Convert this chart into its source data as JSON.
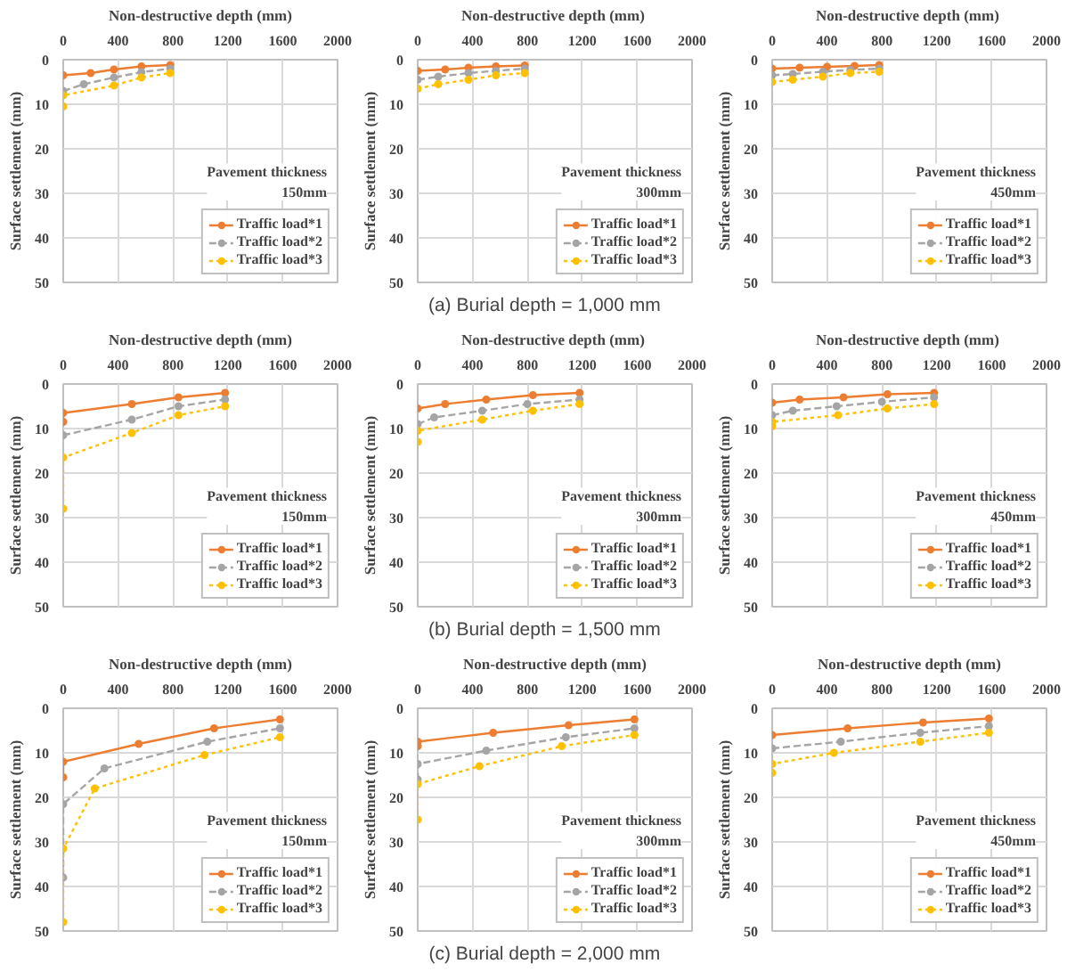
{
  "chart_data": [
    {
      "type": "line",
      "xlabel": "Non-destructive depth (mm)",
      "ylabel": "Surface settlement (mm)",
      "xlim": [
        0,
        2000
      ],
      "xticks": [
        0,
        400,
        800,
        1200,
        1600,
        2000
      ],
      "ylim": [
        50,
        0
      ],
      "yticks": [
        0,
        10,
        20,
        30,
        40,
        50
      ],
      "grid": true,
      "legend": "bottom right",
      "marker": "circle",
      "annotations": [
        "Pavement thickness\n150mm"
      ],
      "series": [
        {
          "name": "Traffic load*1",
          "color": "#ed7d31",
          "line_style": "solid",
          "x": [
            0,
            200,
            370,
            570,
            780
          ],
          "values": [
            3.5,
            3,
            2.2,
            1.5,
            1.2
          ]
        },
        {
          "name": "Traffic load*2",
          "color": "#a5a5a5",
          "line_style": "dashed",
          "x": [
            0,
            150,
            370,
            570,
            780
          ],
          "values": [
            7,
            5.5,
            4,
            2.8,
            2
          ]
        },
        {
          "name": "Traffic load*3",
          "color": "#ffc000",
          "line_style": "dotted",
          "x": [
            0,
            0,
            370,
            570,
            780
          ],
          "values": [
            10.5,
            8,
            5.8,
            4,
            3
          ]
        }
      ]
    },
    {
      "type": "line",
      "title": "(a)  Burial  depth  =  1,000 mm",
      "xlabel": "Non-destructive depth  (mm)",
      "ylabel": "Surface settlement (mm)",
      "xlim": [
        0,
        2000
      ],
      "xticks": [
        0,
        400,
        800,
        1200,
        1600,
        2000
      ],
      "ylim": [
        50,
        0
      ],
      "yticks": [
        0,
        10,
        20,
        30,
        40,
        50
      ],
      "grid": true,
      "legend": "bottom right",
      "marker": "circle",
      "annotations": [
        "Pavement thickness\n300mm"
      ],
      "series": [
        {
          "name": "Traffic load*1",
          "color": "#ed7d31",
          "line_style": "solid",
          "x": [
            0,
            200,
            370,
            570,
            780
          ],
          "values": [
            2.5,
            2.2,
            1.8,
            1.5,
            1.3
          ]
        },
        {
          "name": "Traffic load*2",
          "color": "#a5a5a5",
          "line_style": "dashed",
          "x": [
            0,
            150,
            370,
            570,
            780
          ],
          "values": [
            4.5,
            3.8,
            3,
            2.5,
            2
          ]
        },
        {
          "name": "Traffic load*3",
          "color": "#ffc000",
          "line_style": "dotted",
          "x": [
            0,
            150,
            370,
            570,
            780
          ],
          "values": [
            6.5,
            5.5,
            4.5,
            3.5,
            3
          ]
        }
      ]
    },
    {
      "type": "line",
      "xlabel": "Non-destructive depth  (mm)",
      "ylabel": "Surface settlement (mm)",
      "xlim": [
        0,
        2000
      ],
      "xticks": [
        0,
        400,
        800,
        1200,
        1600,
        2000
      ],
      "ylim": [
        50,
        0
      ],
      "yticks": [
        0,
        10,
        20,
        30,
        40,
        50
      ],
      "grid": true,
      "legend": "bottom right",
      "marker": "circle",
      "annotations": [
        "Pavement thickness\n450mm"
      ],
      "series": [
        {
          "name": "Traffic load*1",
          "color": "#ed7d31",
          "line_style": "solid",
          "x": [
            0,
            200,
            400,
            600,
            780
          ],
          "values": [
            2,
            1.8,
            1.6,
            1.4,
            1.2
          ]
        },
        {
          "name": "Traffic load*2",
          "color": "#a5a5a5",
          "line_style": "dashed",
          "x": [
            0,
            150,
            370,
            570,
            780
          ],
          "values": [
            3.5,
            3.2,
            2.7,
            2.3,
            2
          ]
        },
        {
          "name": "Traffic load*3",
          "color": "#ffc000",
          "line_style": "dotted",
          "x": [
            0,
            150,
            370,
            570,
            780
          ],
          "values": [
            5,
            4.5,
            3.8,
            3,
            2.7
          ]
        }
      ]
    },
    {
      "type": "line",
      "xlabel": "Non-destructive depth (mm)",
      "ylabel": "Surface settlement (mm)",
      "xlim": [
        0,
        2000
      ],
      "xticks": [
        0,
        400,
        800,
        1200,
        1600,
        2000
      ],
      "ylim": [
        50,
        0
      ],
      "yticks": [
        0,
        10,
        20,
        30,
        40,
        50
      ],
      "grid": true,
      "legend": "bottom right",
      "marker": "circle",
      "annotations": [
        "Pavement thickness\n150mm"
      ],
      "series": [
        {
          "name": "Traffic load*1",
          "color": "#ed7d31",
          "line_style": "solid",
          "x": [
            0,
            0,
            500,
            840,
            1180
          ],
          "values": [
            8.5,
            6.5,
            4.5,
            3,
            2
          ]
        },
        {
          "name": "Traffic load*2",
          "color": "#a5a5a5",
          "line_style": "dashed",
          "x": [
            0,
            500,
            840,
            1180
          ],
          "values": [
            11.5,
            8,
            5,
            3.5
          ]
        },
        {
          "name": "Traffic load*3",
          "color": "#ffc000",
          "line_style": "dotted",
          "x": [
            0,
            0,
            500,
            840,
            1180
          ],
          "values": [
            28,
            16.5,
            11,
            7,
            5
          ]
        }
      ]
    },
    {
      "type": "line",
      "title": "(b)  Burial  depth  =  1,500 mm",
      "xlabel": "Non-destructive depth  (mm)",
      "ylabel": "Surface settlement (mm)",
      "xlim": [
        0,
        2000
      ],
      "xticks": [
        0,
        400,
        800,
        1200,
        1600,
        2000
      ],
      "ylim": [
        50,
        0
      ],
      "yticks": [
        0,
        10,
        20,
        30,
        40,
        50
      ],
      "grid": true,
      "legend": "bottom right",
      "marker": "circle",
      "annotations": [
        "Pavement thickness\n300mm"
      ],
      "series": [
        {
          "name": "Traffic load*1",
          "color": "#ed7d31",
          "line_style": "solid",
          "x": [
            0,
            200,
            500,
            840,
            1180
          ],
          "values": [
            5.5,
            4.5,
            3.5,
            2.5,
            2
          ]
        },
        {
          "name": "Traffic load*2",
          "color": "#a5a5a5",
          "line_style": "dashed",
          "x": [
            0,
            120,
            470,
            800,
            1180
          ],
          "values": [
            9,
            7.5,
            6,
            4.5,
            3.5
          ]
        },
        {
          "name": "Traffic load*3",
          "color": "#ffc000",
          "line_style": "dotted",
          "x": [
            0,
            0,
            470,
            840,
            1180
          ],
          "values": [
            13,
            10.5,
            8,
            6,
            4.5
          ]
        }
      ]
    },
    {
      "type": "line",
      "xlabel": "Non-destructive depth  (mm)",
      "ylabel": "Surface settlement (mm)",
      "xlim": [
        0,
        2000
      ],
      "xticks": [
        0,
        400,
        800,
        1200,
        1600,
        2000
      ],
      "ylim": [
        50,
        0
      ],
      "yticks": [
        0,
        10,
        20,
        30,
        40,
        50
      ],
      "grid": true,
      "legend": "bottom right",
      "marker": "circle",
      "annotations": [
        "Pavement thickness\n450mm"
      ],
      "series": [
        {
          "name": "Traffic load*1",
          "color": "#ed7d31",
          "line_style": "solid",
          "x": [
            0,
            200,
            520,
            840,
            1180
          ],
          "values": [
            4.2,
            3.5,
            3,
            2.3,
            2
          ]
        },
        {
          "name": "Traffic load*2",
          "color": "#a5a5a5",
          "line_style": "dashed",
          "x": [
            0,
            150,
            470,
            800,
            1180
          ],
          "values": [
            7,
            6,
            5,
            4,
            3
          ]
        },
        {
          "name": "Traffic load*3",
          "color": "#ffc000",
          "line_style": "dotted",
          "x": [
            0,
            0,
            480,
            840,
            1180
          ],
          "values": [
            9.5,
            8.5,
            7,
            5.5,
            4.5
          ]
        }
      ]
    },
    {
      "type": "line",
      "xlabel": "Non-destructive depth (mm)",
      "ylabel": "Surface settlement (mm)",
      "xlim": [
        0,
        2000
      ],
      "xticks": [
        0,
        400,
        800,
        1200,
        1600,
        2000
      ],
      "ylim": [
        50,
        0
      ],
      "yticks": [
        0,
        10,
        20,
        30,
        40,
        50
      ],
      "grid": true,
      "legend": "bottom right",
      "marker": "circle",
      "annotations": [
        "Pavement thickness\n150mm"
      ],
      "series": [
        {
          "name": "Traffic load*1",
          "color": "#ed7d31",
          "line_style": "solid",
          "x": [
            0,
            0,
            550,
            1100,
            1580
          ],
          "values": [
            15.5,
            12,
            8,
            4.5,
            2.5
          ]
        },
        {
          "name": "Traffic load*2",
          "color": "#a5a5a5",
          "line_style": "dashed",
          "x": [
            0,
            0,
            300,
            1050,
            1580
          ],
          "values": [
            38,
            21.5,
            13.5,
            7.5,
            4.5
          ]
        },
        {
          "name": "Traffic load*3",
          "color": "#ffc000",
          "line_style": "dotted",
          "x": [
            0,
            0,
            230,
            1030,
            1580
          ],
          "values": [
            48,
            31.5,
            18,
            10.5,
            6.5
          ]
        }
      ]
    },
    {
      "type": "line",
      "title": "(c)  Burial  depth  =  2,000 mm",
      "xlabel": "Non-destructive depth (mm)",
      "ylabel": "Surface settlement (mm)",
      "xlim": [
        0,
        2000
      ],
      "xticks": [
        0,
        400,
        800,
        1200,
        1600,
        2000
      ],
      "ylim": [
        50,
        0
      ],
      "yticks": [
        0,
        10,
        20,
        30,
        40,
        50
      ],
      "grid": true,
      "legend": "bottom right",
      "marker": "circle",
      "annotations": [
        "Pavement thickness\n300mm"
      ],
      "series": [
        {
          "name": "Traffic load*1",
          "color": "#ed7d31",
          "line_style": "solid",
          "x": [
            0,
            0,
            550,
            1100,
            1580
          ],
          "values": [
            8.5,
            7.5,
            5.5,
            3.8,
            2.5
          ]
        },
        {
          "name": "Traffic load*2",
          "color": "#a5a5a5",
          "line_style": "dashed",
          "x": [
            0,
            0,
            500,
            1080,
            1580
          ],
          "values": [
            16,
            12.5,
            9.5,
            6.5,
            4.5
          ]
        },
        {
          "name": "Traffic load*3",
          "color": "#ffc000",
          "line_style": "dotted",
          "x": [
            0,
            0,
            450,
            1050,
            1580
          ],
          "values": [
            25,
            17,
            13,
            8.5,
            6
          ]
        }
      ]
    },
    {
      "type": "line",
      "xlabel": "Non-destructive depth (mm)",
      "ylabel": "Surface settlement (mm)",
      "xlim": [
        0,
        2000
      ],
      "xticks": [
        0,
        400,
        800,
        1200,
        1600,
        2000
      ],
      "ylim": [
        50,
        0
      ],
      "yticks": [
        0,
        10,
        20,
        30,
        40,
        50
      ],
      "grid": true,
      "legend": "bottom right",
      "marker": "circle",
      "annotations": [
        "Pavement thickness\n450mm"
      ],
      "series": [
        {
          "name": "Traffic load*1",
          "color": "#ed7d31",
          "line_style": "solid",
          "x": [
            0,
            550,
            1100,
            1580
          ],
          "values": [
            6,
            4.5,
            3.2,
            2.3
          ]
        },
        {
          "name": "Traffic load*2",
          "color": "#a5a5a5",
          "line_style": "dashed",
          "x": [
            0,
            500,
            1080,
            1580
          ],
          "values": [
            9,
            7.5,
            5.5,
            4
          ]
        },
        {
          "name": "Traffic load*3",
          "color": "#ffc000",
          "line_style": "dotted",
          "x": [
            0,
            0,
            450,
            1080,
            1580
          ],
          "values": [
            14.5,
            12.5,
            10,
            7.5,
            5.5
          ]
        }
      ]
    }
  ]
}
